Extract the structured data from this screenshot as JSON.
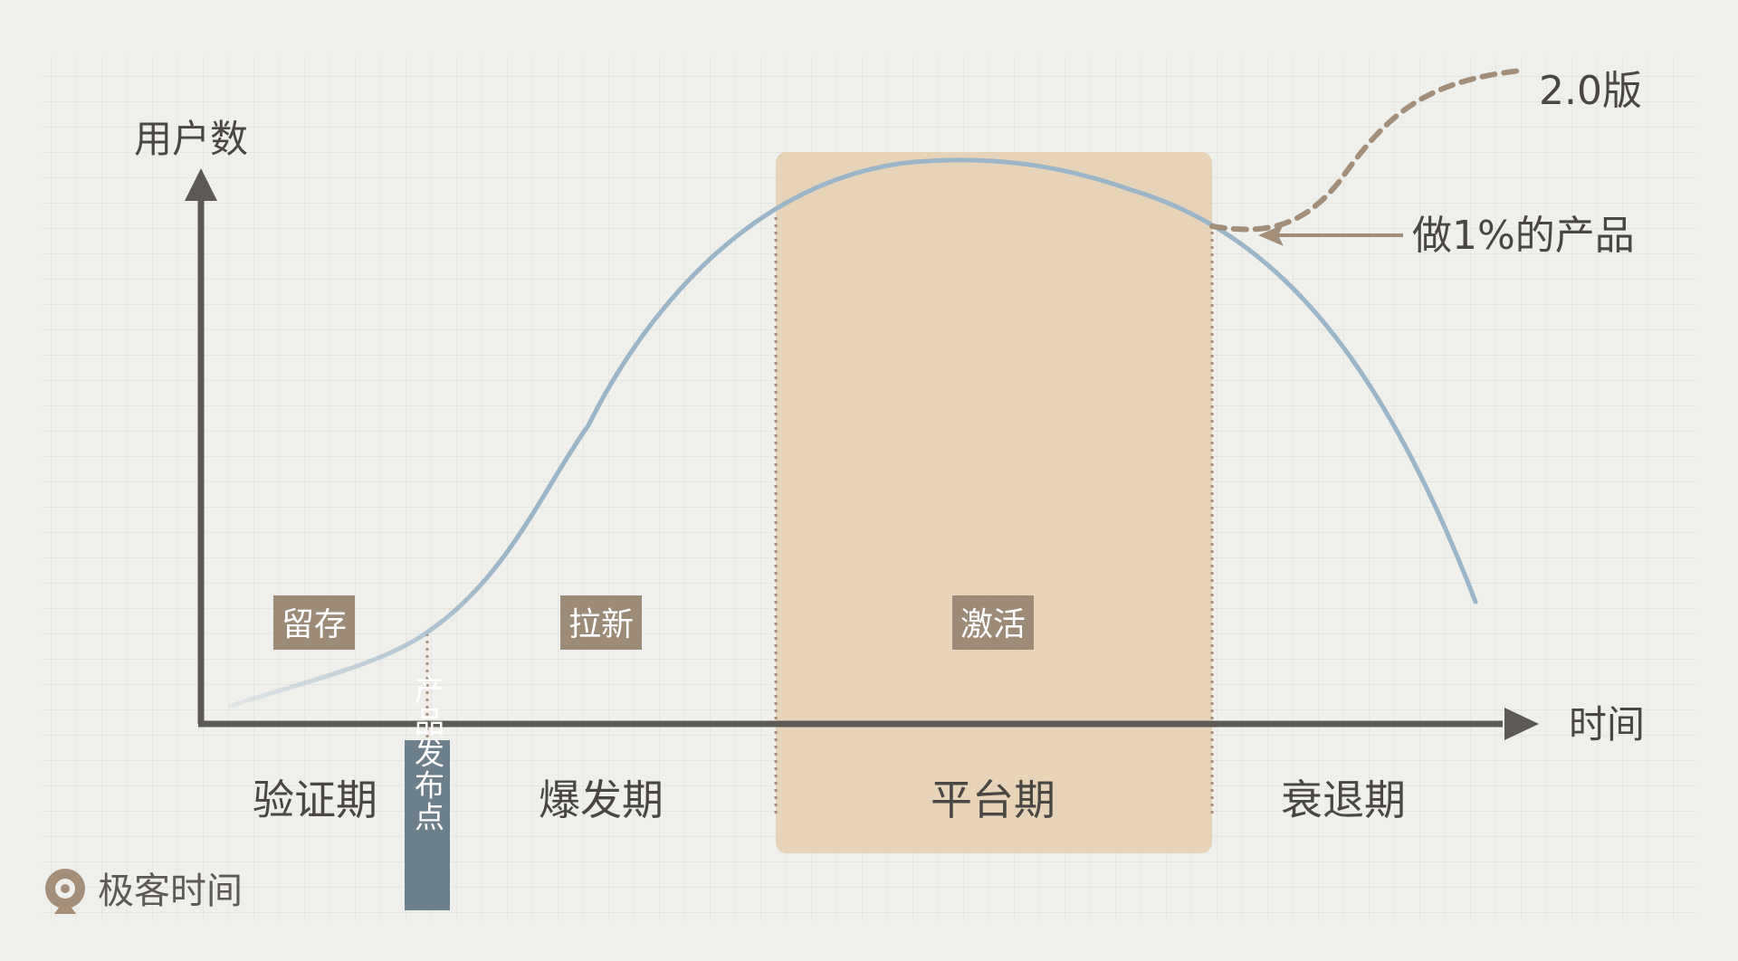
{
  "diagram": {
    "y_axis_label": "用户数",
    "x_axis_label": "时间",
    "stages": [
      "验证期",
      "爆发期",
      "平台期",
      "衰退期"
    ],
    "activities": [
      "留存",
      "拉新",
      "激活"
    ],
    "launch_point": "产品发布点",
    "version_label": "2.0版",
    "arrow_label": "做1%的产品"
  },
  "logo": {
    "text": "极客时间"
  },
  "colors": {
    "background": "#efefeb",
    "grid": "#dcdcd6",
    "axis": "#5d5a55",
    "curve": "#9bb5c9",
    "plateau": "#e5d0b2",
    "tag": "#9c8b77",
    "tag_text": "#ffffff",
    "launch_tag": "#6e7f8c",
    "dotted": "#a88e78",
    "dashed_curve": "#a28e79",
    "text": "#4a4743"
  }
}
